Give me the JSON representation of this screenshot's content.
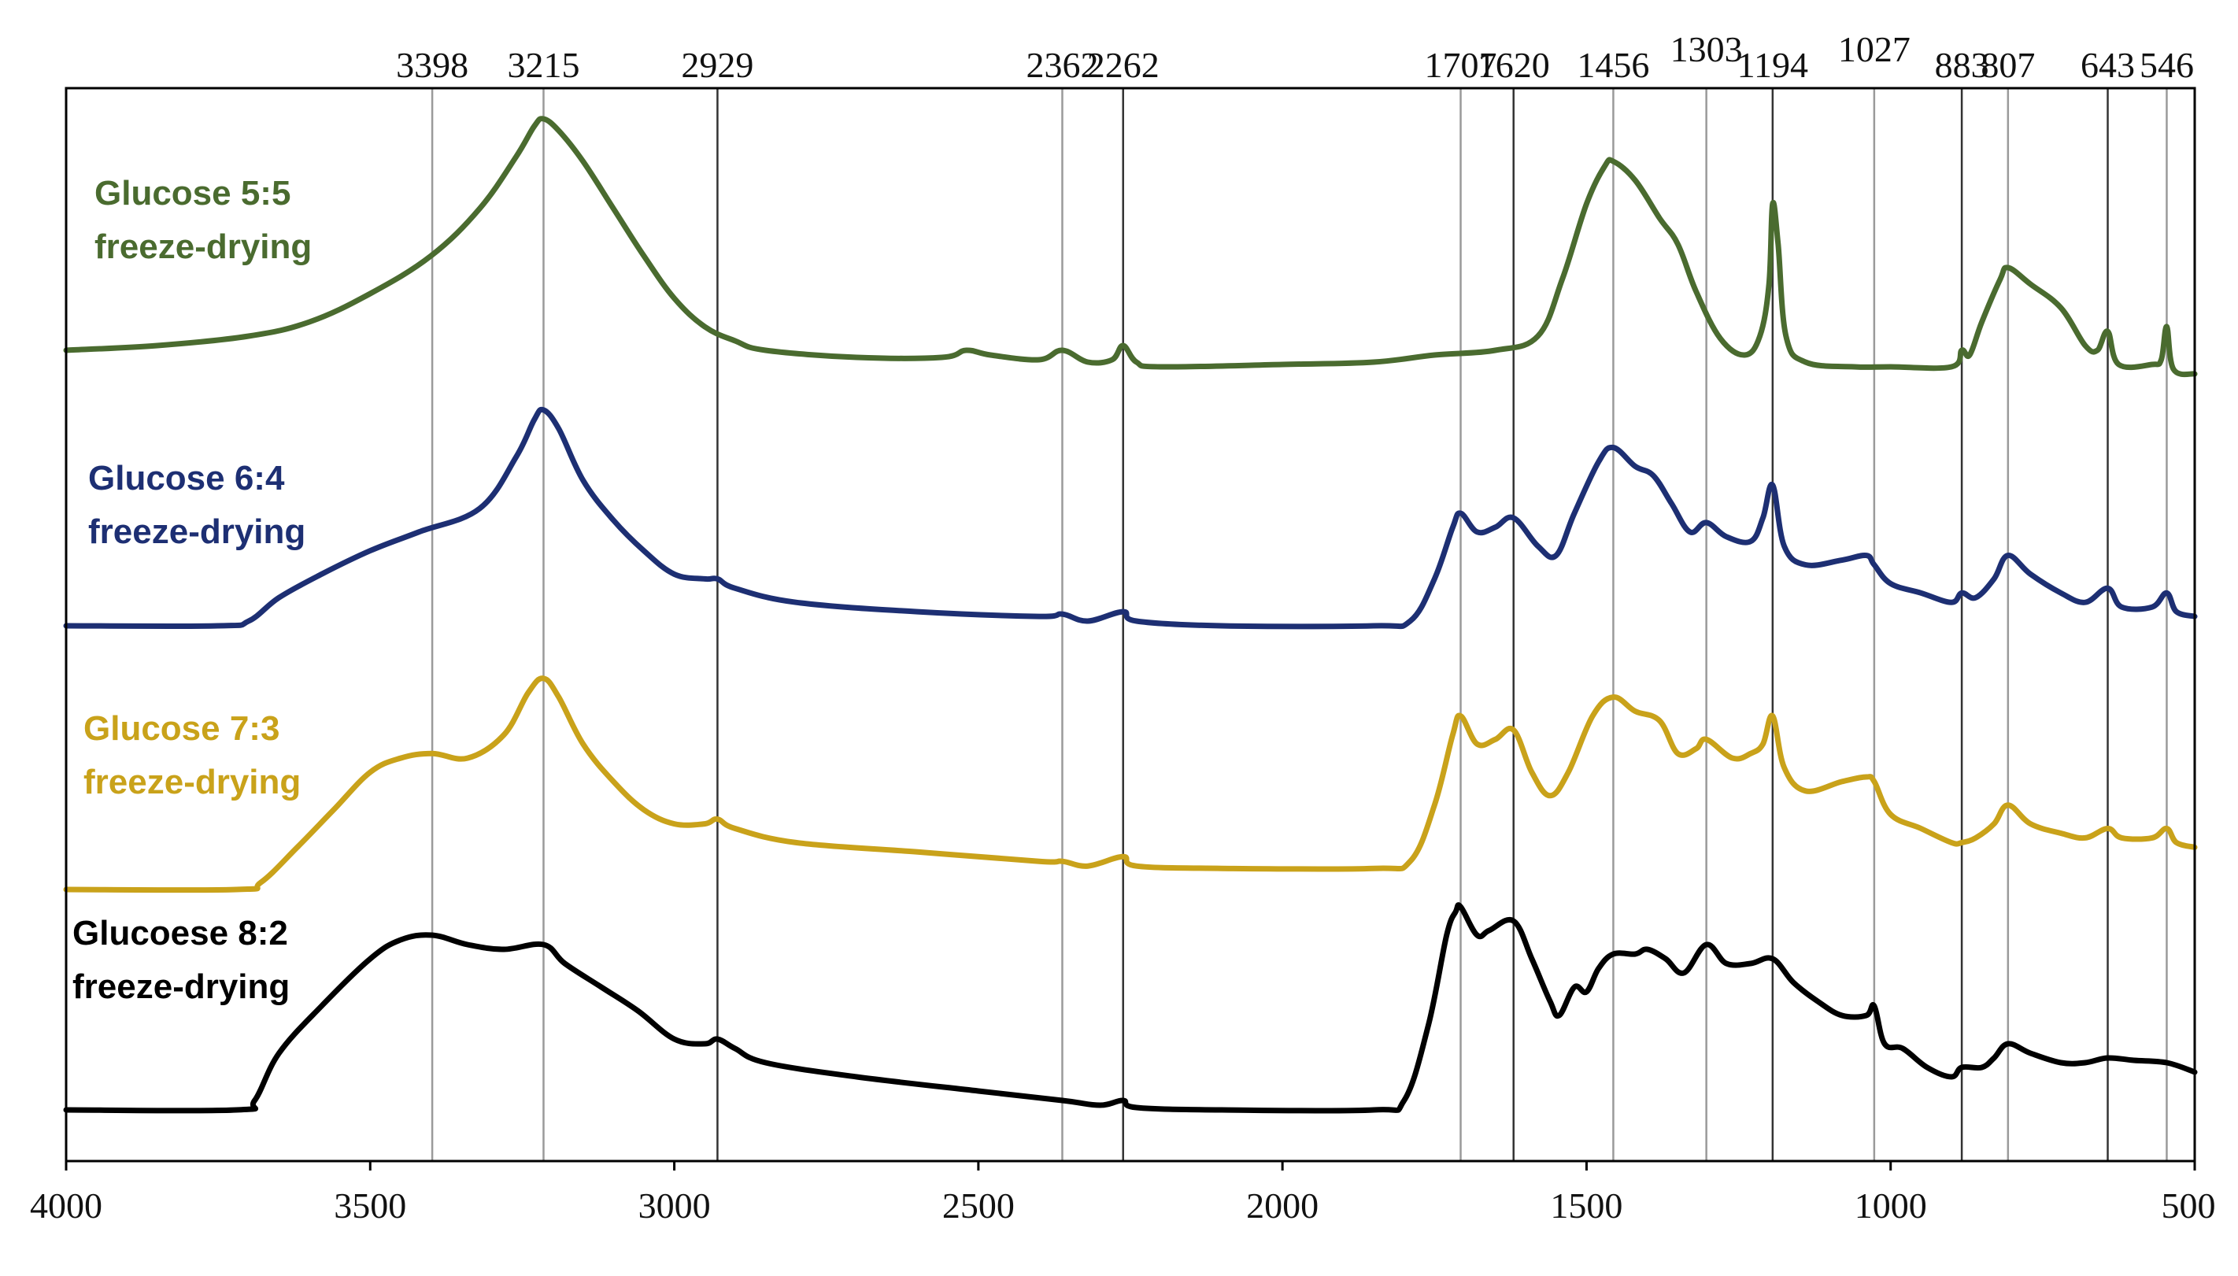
{
  "chart_data": {
    "type": "line",
    "title": "",
    "xlabel": "",
    "ylabel": "",
    "xlim": [
      4000,
      500
    ],
    "x_reversed": true,
    "y_ticks_shown": false,
    "grid": false,
    "x_ticks": [
      {
        "value": 4000,
        "label": "4000"
      },
      {
        "value": 3500,
        "label": "3500"
      },
      {
        "value": 3000,
        "label": "3000"
      },
      {
        "value": 2500,
        "label": "2500"
      },
      {
        "value": 2000,
        "label": "2000"
      },
      {
        "value": 1500,
        "label": "1500"
      },
      {
        "value": 1000,
        "label": "1000"
      },
      {
        "value": 500,
        "label": "500"
      }
    ],
    "peak_markers": [
      {
        "value": 3398,
        "label": "3398",
        "line_color": "#9a9a9a"
      },
      {
        "value": 3215,
        "label": "3215",
        "line_color": "#9a9a9a"
      },
      {
        "value": 2929,
        "label": "2929",
        "line_color": "#333333"
      },
      {
        "value": 2362,
        "label": "2362",
        "line_color": "#9a9a9a"
      },
      {
        "value": 2262,
        "label": "2262",
        "line_color": "#333333"
      },
      {
        "value": 1707,
        "label": "1707",
        "line_color": "#9a9a9a"
      },
      {
        "value": 1620,
        "label": "1620",
        "line_color": "#333333"
      },
      {
        "value": 1456,
        "label": "1456",
        "line_color": "#9a9a9a"
      },
      {
        "value": 1303,
        "label": "1303",
        "line_color": "#9a9a9a"
      },
      {
        "value": 1194,
        "label": "1194",
        "line_color": "#333333"
      },
      {
        "value": 1027,
        "label": "1027",
        "line_color": "#9a9a9a"
      },
      {
        "value": 883,
        "label": "883",
        "line_color": "#333333"
      },
      {
        "value": 807,
        "label": "807",
        "line_color": "#9a9a9a"
      },
      {
        "value": 643,
        "label": "643",
        "line_color": "#333333"
      },
      {
        "value": 546,
        "label": "546",
        "line_color": "#9a9a9a"
      }
    ],
    "series": [
      {
        "label_line1": "Glucose 5:5",
        "label_line2": "freeze-drying",
        "color": "#4a6b2f",
        "baseline": 0.0,
        "points": [
          [
            4000,
            0.0
          ],
          [
            3850,
            0.02
          ],
          [
            3700,
            0.06
          ],
          [
            3600,
            0.12
          ],
          [
            3500,
            0.24
          ],
          [
            3400,
            0.4
          ],
          [
            3320,
            0.6
          ],
          [
            3260,
            0.82
          ],
          [
            3230,
            0.95
          ],
          [
            3215,
            0.98
          ],
          [
            3190,
            0.93
          ],
          [
            3150,
            0.8
          ],
          [
            3100,
            0.6
          ],
          [
            3050,
            0.4
          ],
          [
            3000,
            0.22
          ],
          [
            2950,
            0.1
          ],
          [
            2900,
            0.04
          ],
          [
            2850,
            0.0
          ],
          [
            2700,
            -0.03
          ],
          [
            2560,
            -0.03
          ],
          [
            2520,
            0.0
          ],
          [
            2480,
            -0.02
          ],
          [
            2400,
            -0.04
          ],
          [
            2362,
            0.0
          ],
          [
            2320,
            -0.05
          ],
          [
            2280,
            -0.04
          ],
          [
            2262,
            0.02
          ],
          [
            2240,
            -0.05
          ],
          [
            2200,
            -0.07
          ],
          [
            2000,
            -0.06
          ],
          [
            1850,
            -0.05
          ],
          [
            1750,
            -0.02
          ],
          [
            1650,
            0.0
          ],
          [
            1580,
            0.06
          ],
          [
            1540,
            0.3
          ],
          [
            1500,
            0.62
          ],
          [
            1470,
            0.78
          ],
          [
            1456,
            0.8
          ],
          [
            1420,
            0.72
          ],
          [
            1380,
            0.56
          ],
          [
            1350,
            0.45
          ],
          [
            1320,
            0.25
          ],
          [
            1280,
            0.05
          ],
          [
            1240,
            -0.02
          ],
          [
            1215,
            0.06
          ],
          [
            1200,
            0.28
          ],
          [
            1194,
            0.62
          ],
          [
            1185,
            0.45
          ],
          [
            1172,
            0.06
          ],
          [
            1140,
            -0.05
          ],
          [
            1060,
            -0.07
          ],
          [
            1000,
            -0.07
          ],
          [
            900,
            -0.07
          ],
          [
            883,
            0.0
          ],
          [
            870,
            -0.02
          ],
          [
            850,
            0.12
          ],
          [
            820,
            0.3
          ],
          [
            807,
            0.35
          ],
          [
            770,
            0.28
          ],
          [
            720,
            0.18
          ],
          [
            680,
            0.02
          ],
          [
            660,
            0.0
          ],
          [
            643,
            0.08
          ],
          [
            625,
            -0.06
          ],
          [
            570,
            -0.06
          ],
          [
            555,
            -0.04
          ],
          [
            546,
            0.1
          ],
          [
            535,
            -0.08
          ],
          [
            500,
            -0.1
          ]
        ]
      },
      {
        "label_line1": "Glucose 6:4",
        "label_line2": "freeze-drying",
        "color": "#1d2f73",
        "baseline": 0.0,
        "points": [
          [
            4000,
            0.0
          ],
          [
            3750,
            0.0
          ],
          [
            3700,
            0.02
          ],
          [
            3650,
            0.12
          ],
          [
            3580,
            0.22
          ],
          [
            3500,
            0.32
          ],
          [
            3420,
            0.4
          ],
          [
            3320,
            0.5
          ],
          [
            3260,
            0.72
          ],
          [
            3230,
            0.88
          ],
          [
            3215,
            0.92
          ],
          [
            3190,
            0.84
          ],
          [
            3150,
            0.62
          ],
          [
            3100,
            0.45
          ],
          [
            3050,
            0.32
          ],
          [
            3000,
            0.22
          ],
          [
            2950,
            0.2
          ],
          [
            2929,
            0.2
          ],
          [
            2900,
            0.16
          ],
          [
            2800,
            0.1
          ],
          [
            2600,
            0.06
          ],
          [
            2400,
            0.04
          ],
          [
            2362,
            0.05
          ],
          [
            2320,
            0.02
          ],
          [
            2262,
            0.06
          ],
          [
            2240,
            0.02
          ],
          [
            2100,
            0.0
          ],
          [
            1850,
            0.0
          ],
          [
            1790,
            0.02
          ],
          [
            1750,
            0.2
          ],
          [
            1720,
            0.42
          ],
          [
            1707,
            0.48
          ],
          [
            1680,
            0.4
          ],
          [
            1650,
            0.42
          ],
          [
            1620,
            0.46
          ],
          [
            1580,
            0.34
          ],
          [
            1550,
            0.3
          ],
          [
            1520,
            0.48
          ],
          [
            1480,
            0.7
          ],
          [
            1456,
            0.76
          ],
          [
            1420,
            0.68
          ],
          [
            1390,
            0.64
          ],
          [
            1360,
            0.52
          ],
          [
            1330,
            0.4
          ],
          [
            1303,
            0.44
          ],
          [
            1270,
            0.38
          ],
          [
            1230,
            0.36
          ],
          [
            1210,
            0.46
          ],
          [
            1194,
            0.6
          ],
          [
            1175,
            0.34
          ],
          [
            1140,
            0.26
          ],
          [
            1080,
            0.28
          ],
          [
            1040,
            0.3
          ],
          [
            1027,
            0.26
          ],
          [
            1000,
            0.18
          ],
          [
            950,
            0.14
          ],
          [
            900,
            0.1
          ],
          [
            883,
            0.14
          ],
          [
            860,
            0.12
          ],
          [
            830,
            0.2
          ],
          [
            807,
            0.3
          ],
          [
            770,
            0.22
          ],
          [
            720,
            0.14
          ],
          [
            680,
            0.1
          ],
          [
            643,
            0.16
          ],
          [
            620,
            0.08
          ],
          [
            570,
            0.08
          ],
          [
            546,
            0.14
          ],
          [
            530,
            0.06
          ],
          [
            500,
            0.04
          ]
        ]
      },
      {
        "label_line1": "Glucose 7:3",
        "label_line2": "freeze-drying",
        "color": "#c9a21a",
        "baseline": 0.0,
        "points": [
          [
            4000,
            0.0
          ],
          [
            3720,
            0.0
          ],
          [
            3680,
            0.03
          ],
          [
            3620,
            0.18
          ],
          [
            3560,
            0.34
          ],
          [
            3500,
            0.5
          ],
          [
            3450,
            0.56
          ],
          [
            3398,
            0.58
          ],
          [
            3340,
            0.56
          ],
          [
            3280,
            0.66
          ],
          [
            3240,
            0.84
          ],
          [
            3215,
            0.9
          ],
          [
            3190,
            0.82
          ],
          [
            3150,
            0.62
          ],
          [
            3100,
            0.46
          ],
          [
            3050,
            0.34
          ],
          [
            3000,
            0.28
          ],
          [
            2950,
            0.28
          ],
          [
            2929,
            0.3
          ],
          [
            2900,
            0.26
          ],
          [
            2800,
            0.2
          ],
          [
            2600,
            0.16
          ],
          [
            2400,
            0.12
          ],
          [
            2362,
            0.12
          ],
          [
            2320,
            0.1
          ],
          [
            2262,
            0.14
          ],
          [
            2240,
            0.1
          ],
          [
            2100,
            0.09
          ],
          [
            1850,
            0.09
          ],
          [
            1790,
            0.12
          ],
          [
            1750,
            0.36
          ],
          [
            1720,
            0.66
          ],
          [
            1707,
            0.74
          ],
          [
            1680,
            0.62
          ],
          [
            1650,
            0.64
          ],
          [
            1620,
            0.68
          ],
          [
            1590,
            0.5
          ],
          [
            1560,
            0.4
          ],
          [
            1530,
            0.5
          ],
          [
            1490,
            0.74
          ],
          [
            1456,
            0.82
          ],
          [
            1420,
            0.76
          ],
          [
            1380,
            0.72
          ],
          [
            1350,
            0.58
          ],
          [
            1320,
            0.6
          ],
          [
            1303,
            0.64
          ],
          [
            1260,
            0.56
          ],
          [
            1230,
            0.58
          ],
          [
            1210,
            0.62
          ],
          [
            1194,
            0.74
          ],
          [
            1175,
            0.52
          ],
          [
            1140,
            0.42
          ],
          [
            1080,
            0.46
          ],
          [
            1040,
            0.48
          ],
          [
            1027,
            0.46
          ],
          [
            1000,
            0.32
          ],
          [
            950,
            0.26
          ],
          [
            900,
            0.2
          ],
          [
            883,
            0.2
          ],
          [
            860,
            0.22
          ],
          [
            830,
            0.28
          ],
          [
            807,
            0.36
          ],
          [
            770,
            0.28
          ],
          [
            720,
            0.24
          ],
          [
            680,
            0.22
          ],
          [
            643,
            0.26
          ],
          [
            620,
            0.22
          ],
          [
            570,
            0.22
          ],
          [
            546,
            0.26
          ],
          [
            530,
            0.2
          ],
          [
            500,
            0.18
          ]
        ]
      },
      {
        "label_line1": "Glucoese 8:2",
        "label_line2": "freeze-drying",
        "color": "#000000",
        "baseline": 0.0,
        "points": [
          [
            4000,
            0.0
          ],
          [
            3720,
            0.0
          ],
          [
            3690,
            0.04
          ],
          [
            3650,
            0.24
          ],
          [
            3580,
            0.44
          ],
          [
            3500,
            0.64
          ],
          [
            3450,
            0.72
          ],
          [
            3398,
            0.74
          ],
          [
            3340,
            0.7
          ],
          [
            3280,
            0.68
          ],
          [
            3215,
            0.7
          ],
          [
            3180,
            0.62
          ],
          [
            3120,
            0.52
          ],
          [
            3060,
            0.42
          ],
          [
            3000,
            0.3
          ],
          [
            2950,
            0.28
          ],
          [
            2929,
            0.3
          ],
          [
            2900,
            0.26
          ],
          [
            2850,
            0.2
          ],
          [
            2700,
            0.14
          ],
          [
            2500,
            0.08
          ],
          [
            2362,
            0.04
          ],
          [
            2300,
            0.02
          ],
          [
            2262,
            0.04
          ],
          [
            2240,
            0.01
          ],
          [
            2100,
            0.0
          ],
          [
            1850,
            0.0
          ],
          [
            1800,
            0.04
          ],
          [
            1760,
            0.36
          ],
          [
            1730,
            0.74
          ],
          [
            1715,
            0.84
          ],
          [
            1707,
            0.86
          ],
          [
            1680,
            0.74
          ],
          [
            1660,
            0.76
          ],
          [
            1620,
            0.8
          ],
          [
            1590,
            0.64
          ],
          [
            1560,
            0.46
          ],
          [
            1545,
            0.4
          ],
          [
            1520,
            0.52
          ],
          [
            1500,
            0.5
          ],
          [
            1480,
            0.6
          ],
          [
            1456,
            0.66
          ],
          [
            1420,
            0.66
          ],
          [
            1400,
            0.68
          ],
          [
            1370,
            0.64
          ],
          [
            1340,
            0.58
          ],
          [
            1303,
            0.7
          ],
          [
            1270,
            0.62
          ],
          [
            1230,
            0.62
          ],
          [
            1194,
            0.64
          ],
          [
            1160,
            0.54
          ],
          [
            1120,
            0.46
          ],
          [
            1080,
            0.4
          ],
          [
            1040,
            0.4
          ],
          [
            1027,
            0.44
          ],
          [
            1010,
            0.28
          ],
          [
            980,
            0.26
          ],
          [
            940,
            0.18
          ],
          [
            900,
            0.14
          ],
          [
            883,
            0.18
          ],
          [
            850,
            0.18
          ],
          [
            830,
            0.22
          ],
          [
            807,
            0.28
          ],
          [
            770,
            0.24
          ],
          [
            720,
            0.2
          ],
          [
            680,
            0.2
          ],
          [
            643,
            0.22
          ],
          [
            600,
            0.21
          ],
          [
            546,
            0.2
          ],
          [
            500,
            0.16
          ]
        ]
      }
    ]
  }
}
